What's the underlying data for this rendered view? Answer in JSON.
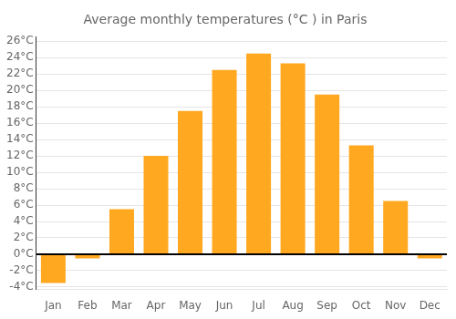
{
  "chart_data": {
    "type": "bar",
    "title": "Average monthly temperatures (°C ) in Paris",
    "categories": [
      "Jan",
      "Feb",
      "Mar",
      "Apr",
      "May",
      "Jun",
      "Jul",
      "Aug",
      "Sep",
      "Oct",
      "Nov",
      "Dec"
    ],
    "values": [
      -3.5,
      -0.5,
      5.5,
      12.0,
      17.5,
      22.5,
      24.5,
      23.3,
      19.5,
      13.3,
      6.5,
      -0.5
    ],
    "color": "#FFA820",
    "ylim": [
      -4.3,
      26.5
    ],
    "yticks": [
      {
        "value": -4,
        "label": "-4°C"
      },
      {
        "value": -2,
        "label": "-2°C"
      },
      {
        "value": 0,
        "label": "0°C"
      },
      {
        "value": 2,
        "label": "2°C"
      },
      {
        "value": 4,
        "label": "4°C"
      },
      {
        "value": 6,
        "label": "6°C"
      },
      {
        "value": 8,
        "label": "8°C"
      },
      {
        "value": 10,
        "label": "10°C"
      },
      {
        "value": 12,
        "label": "12°C"
      },
      {
        "value": 14,
        "label": "14°C"
      },
      {
        "value": 16,
        "label": "16°C"
      },
      {
        "value": 18,
        "label": "18°C"
      },
      {
        "value": 20,
        "label": "20°C"
      },
      {
        "value": 22,
        "label": "22°C"
      },
      {
        "value": 24,
        "label": "24°C"
      },
      {
        "value": 26,
        "label": "26°C"
      }
    ],
    "grid": true
  }
}
